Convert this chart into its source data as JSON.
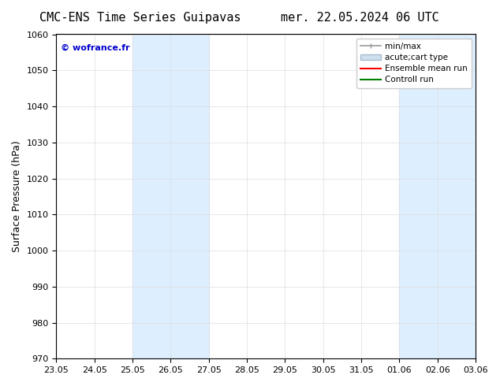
{
  "title_left": "CMC-ENS Time Series Guipavas",
  "title_right": "mer. 22.05.2024 06 UTC",
  "ylabel": "Surface Pressure (hPa)",
  "ylim": [
    970,
    1060
  ],
  "yticks": [
    970,
    980,
    990,
    1000,
    1010,
    1020,
    1030,
    1040,
    1050,
    1060
  ],
  "x_tick_labels": [
    "23.05",
    "24.05",
    "25.05",
    "26.05",
    "27.05",
    "28.05",
    "29.05",
    "30.05",
    "31.05",
    "01.06",
    "02.06",
    "03.06"
  ],
  "x_tick_positions": [
    0,
    1,
    2,
    3,
    4,
    5,
    6,
    7,
    8,
    9,
    10,
    11
  ],
  "shaded_bands": [
    {
      "x_start": 2,
      "x_end": 4
    },
    {
      "x_start": 9,
      "x_end": 11
    }
  ],
  "shaded_color": "#ddeeff",
  "watermark": "© wofrance.fr",
  "watermark_color": "#0000cc",
  "legend_items": [
    {
      "label": "min/max",
      "color": "#aaaaaa",
      "lw": 1.5,
      "style": "|-|"
    },
    {
      "label": "acute;cart type",
      "color": "#ccddee",
      "patch": true
    },
    {
      "label": "Ensemble mean run",
      "color": "red",
      "lw": 1.5
    },
    {
      "label": "Controll run",
      "color": "green",
      "lw": 1.5
    }
  ],
  "bg_color": "#ffffff",
  "spine_color": "#000000",
  "grid_color": "#dddddd",
  "title_fontsize": 11,
  "tick_fontsize": 8,
  "ylabel_fontsize": 9
}
